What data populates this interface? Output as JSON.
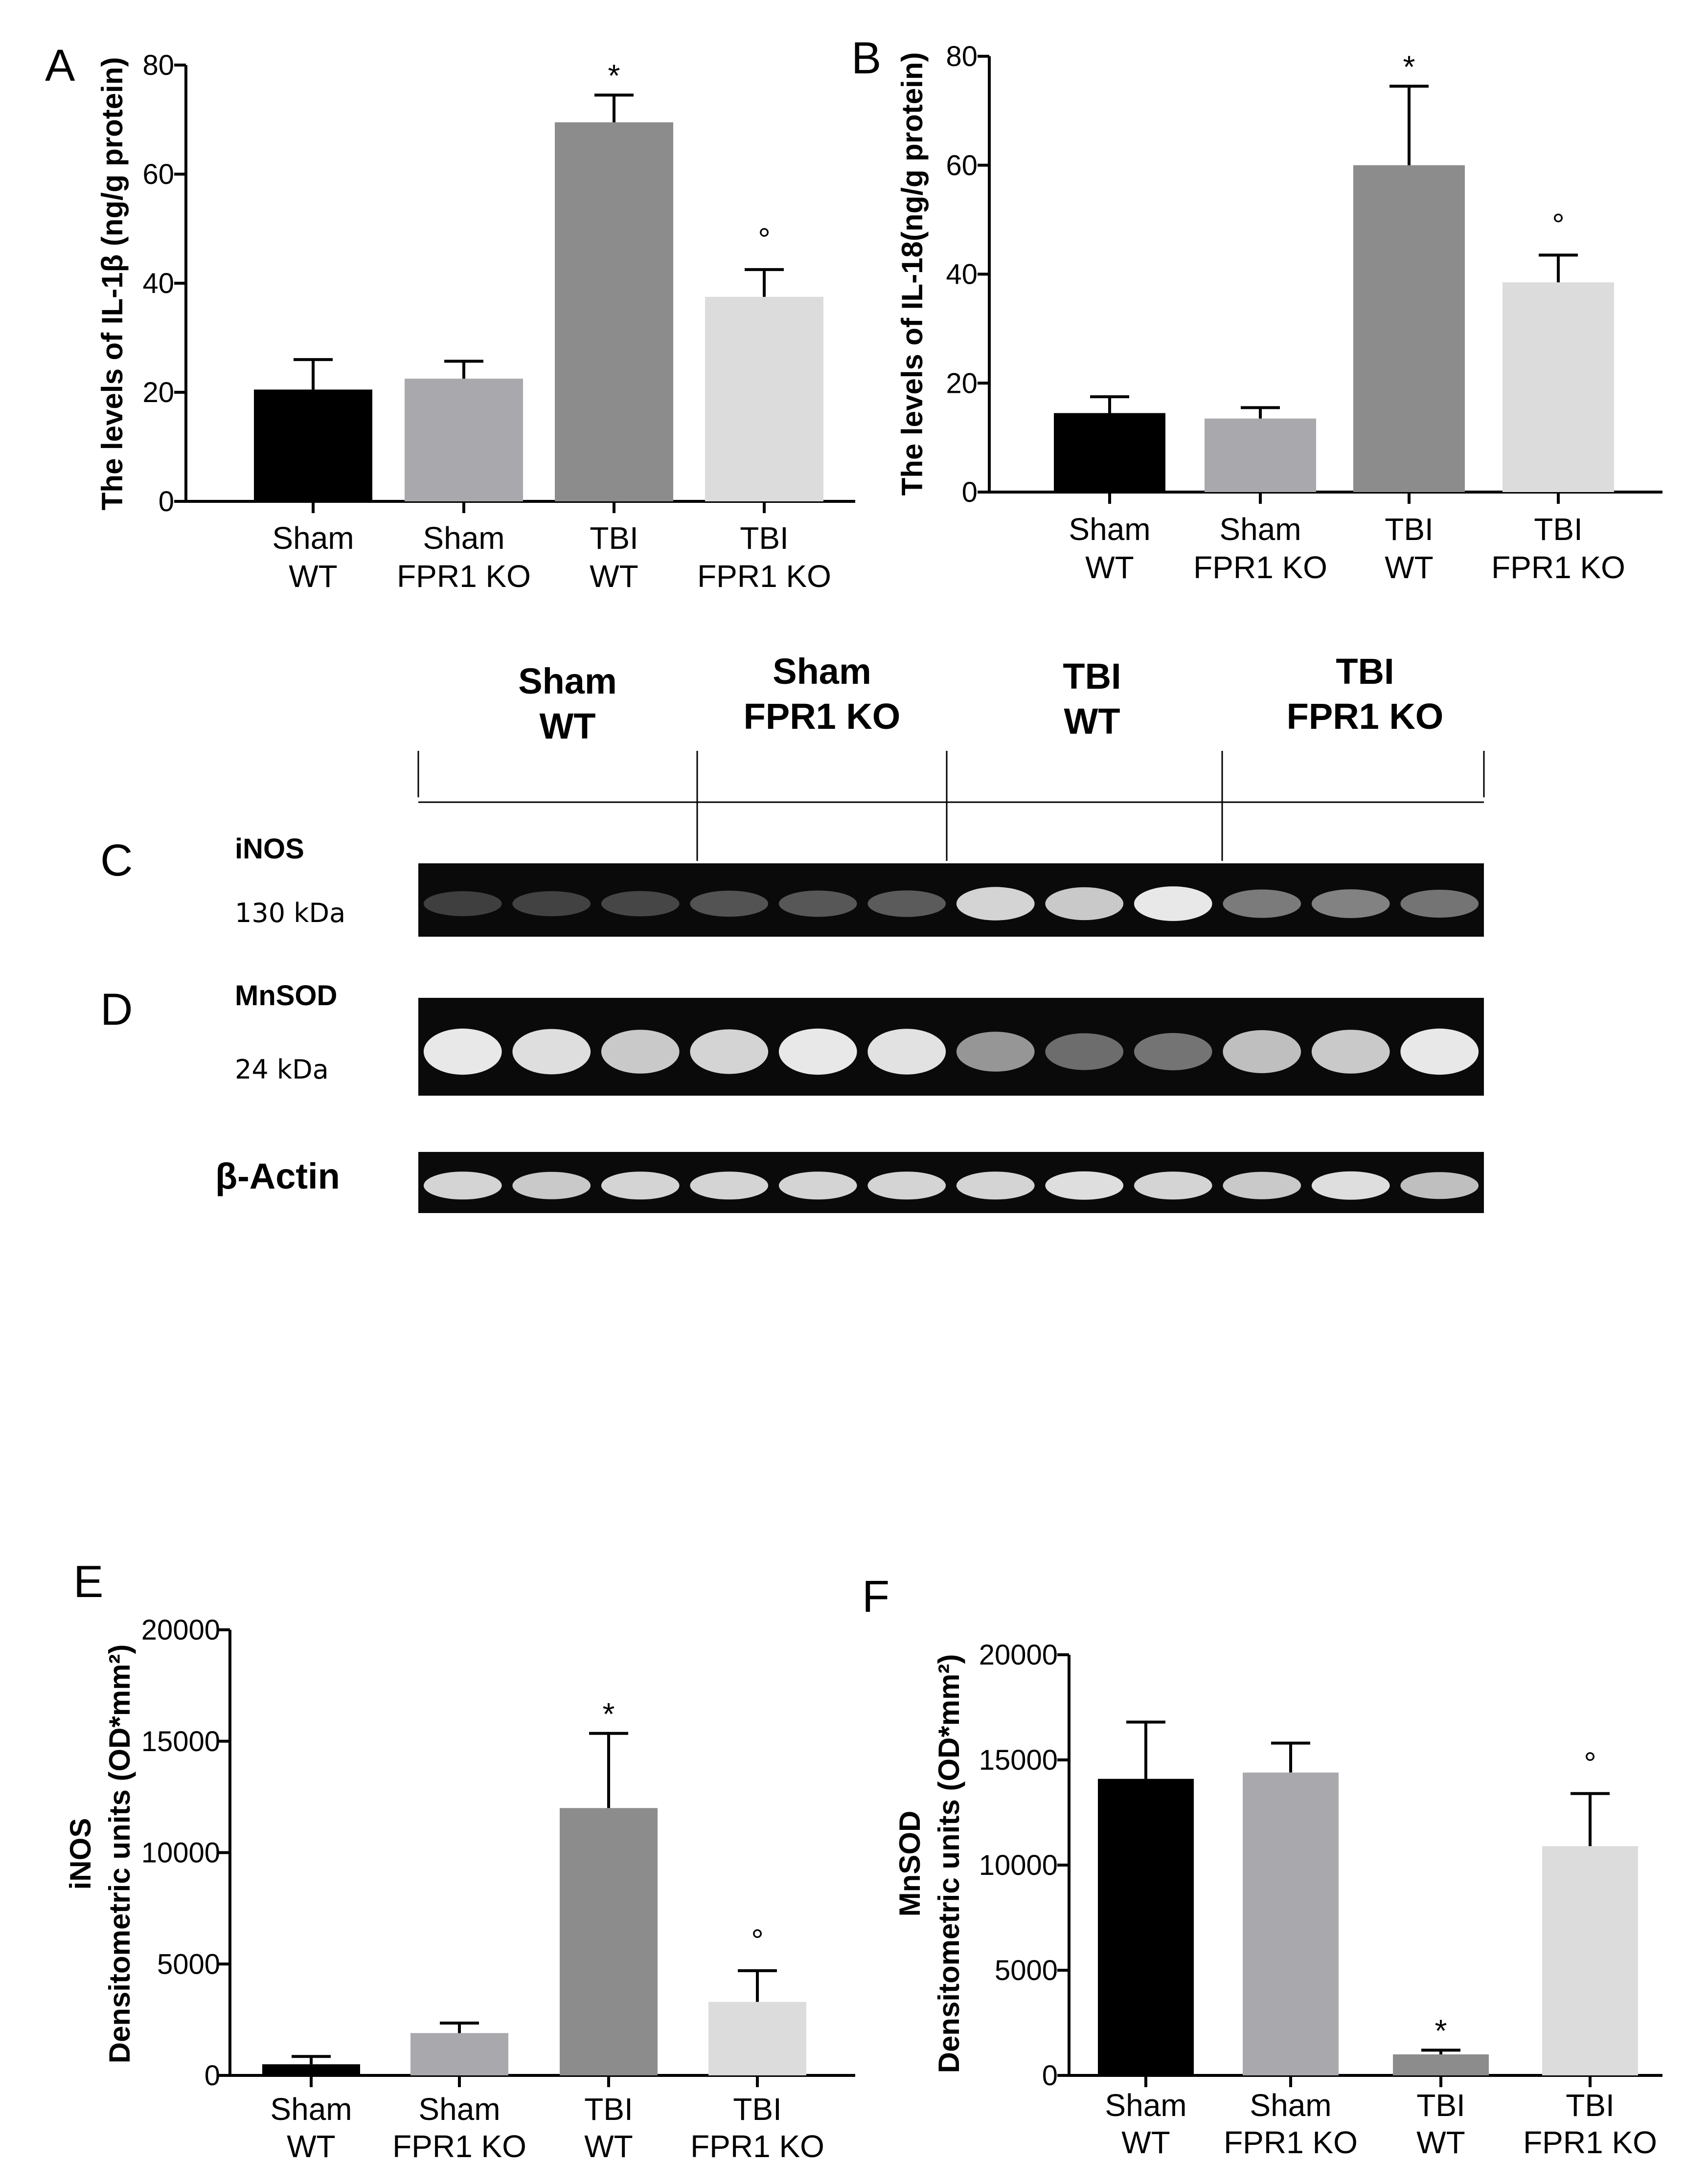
{
  "figure": {
    "category_labels": [
      [
        "Sham",
        "WT"
      ],
      [
        "Sham",
        "FPR1 KO"
      ],
      [
        "TBI",
        "WT"
      ],
      [
        "TBI",
        "FPR1 KO"
      ]
    ],
    "bar_colors": [
      "#000000",
      "#a9a9ad",
      "#8c8c8c",
      "#dcdcdc"
    ],
    "blot": {
      "letters": [
        "C",
        "D"
      ],
      "group_headers": [
        [
          "Sham",
          "WT"
        ],
        [
          "Sham",
          "FPR1 KO"
        ],
        [
          "TBI",
          "WT"
        ],
        [
          "TBI",
          "FPR1 KO"
        ]
      ],
      "rows": [
        {
          "name": "iNOS",
          "kda": "130 kDa",
          "intensity": [
            0.12,
            0.14,
            0.16,
            0.22,
            0.24,
            0.26,
            0.85,
            0.8,
            0.95,
            0.42,
            0.45,
            0.38
          ]
        },
        {
          "name": "MnSOD",
          "kda": "24 kDa",
          "intensity": [
            0.95,
            0.9,
            0.8,
            0.85,
            0.95,
            0.92,
            0.55,
            0.35,
            0.38,
            0.75,
            0.8,
            0.95
          ]
        },
        {
          "name": "β-Actin",
          "kda": "",
          "intensity": [
            0.85,
            0.8,
            0.85,
            0.85,
            0.85,
            0.85,
            0.85,
            0.9,
            0.85,
            0.8,
            0.9,
            0.75
          ]
        }
      ]
    }
  },
  "chart_data": [
    {
      "panel": "A",
      "type": "bar",
      "ylabel": "The levels of IL-1β (ng/g protein)",
      "ylim": [
        0,
        80
      ],
      "yticks": [
        "0",
        "20",
        "40",
        "60",
        "80"
      ],
      "yticks_values": [
        0,
        20,
        40,
        60,
        80
      ],
      "categories": [
        "Sham WT",
        "Sham FPR1 KO",
        "TBI WT",
        "TBI FPR1 KO"
      ],
      "values": [
        20.5,
        22.5,
        69.5,
        37.5
      ],
      "errors": [
        5.5,
        3.2,
        5.0,
        5.0
      ],
      "marks": [
        "",
        "",
        "*",
        "°"
      ]
    },
    {
      "panel": "B",
      "type": "bar",
      "ylabel": "The levels of IL-18(ng/g protein)",
      "ylim": [
        0,
        80
      ],
      "yticks": [
        "0",
        "20",
        "40",
        "60",
        "80"
      ],
      "yticks_values": [
        0,
        20,
        40,
        60,
        80
      ],
      "categories": [
        "Sham WT",
        "Sham FPR1 KO",
        "TBI WT",
        "TBI FPR1 KO"
      ],
      "values": [
        14.5,
        13.5,
        60.0,
        38.5
      ],
      "errors": [
        3.0,
        2.0,
        14.5,
        5.0
      ],
      "marks": [
        "",
        "",
        "*",
        "°"
      ]
    },
    {
      "panel": "E",
      "type": "bar",
      "ylabel_lines": [
        "iNOS",
        "Densitometric units (OD*mm²)"
      ],
      "ylim": [
        0,
        20000
      ],
      "yticks": [
        "0",
        "5000",
        "10000",
        "15000",
        "20000"
      ],
      "yticks_values": [
        0,
        5000,
        10000,
        15000,
        20000
      ],
      "categories": [
        "Sham WT",
        "Sham FPR1 KO",
        "TBI WT",
        "TBI FPR1 KO"
      ],
      "values": [
        500,
        1900,
        12000,
        3300
      ],
      "errors": [
        350,
        450,
        3350,
        1400
      ],
      "marks": [
        "",
        "",
        "*",
        "°"
      ]
    },
    {
      "panel": "F",
      "type": "bar",
      "ylabel_lines": [
        "MnSOD",
        "Densitometric units (OD*mm²)"
      ],
      "ylim": [
        0,
        20000
      ],
      "yticks": [
        "0",
        "5000",
        "10000",
        "15000",
        "20000"
      ],
      "yticks_values": [
        0,
        5000,
        10000,
        15000,
        20000
      ],
      "categories": [
        "Sham WT",
        "Sham FPR1 KO",
        "TBI WT",
        "TBI FPR1 KO"
      ],
      "values": [
        14100,
        14400,
        1000,
        10900
      ],
      "errors": [
        2700,
        1400,
        200,
        2500
      ],
      "marks": [
        "",
        "",
        "*",
        "°"
      ]
    }
  ]
}
